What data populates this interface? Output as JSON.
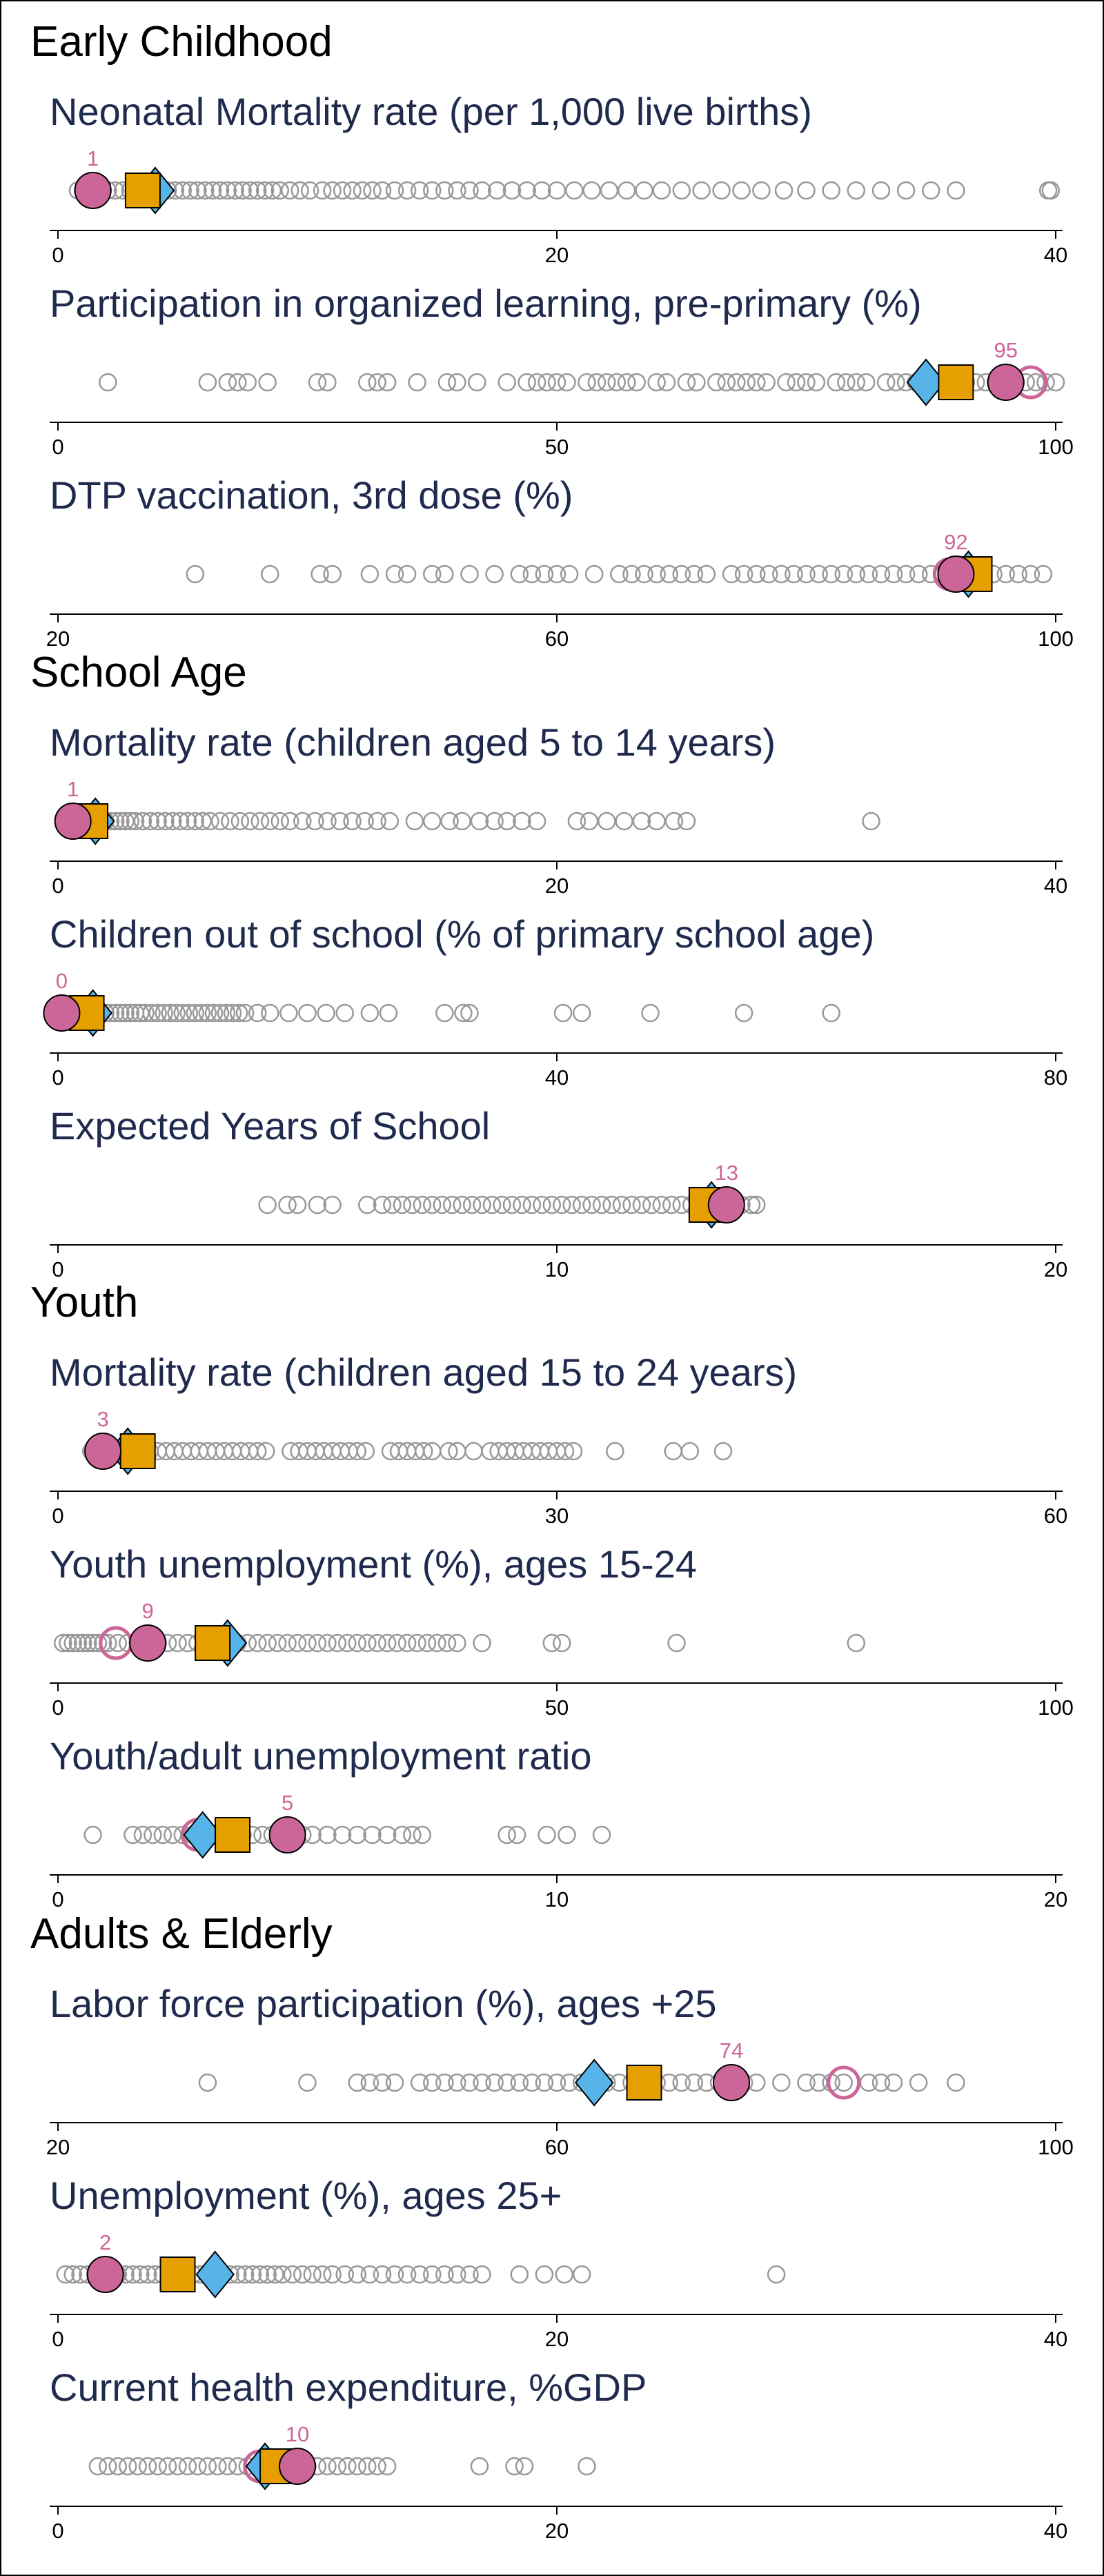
{
  "colors": {
    "background": "#ffffff",
    "country": "#cc6699",
    "square": "#e69f00",
    "diamond": "#56b4e9",
    "others": "#999999",
    "title": "#1f2a4d"
  },
  "sections": [
    {
      "title": "Early Childhood",
      "panels": [
        {
          "title": "Neonatal Mortality rate (per 1,000 live births)",
          "axis": {
            "min": 0,
            "max": 40,
            "ticks": [
              0,
              20,
              40
            ]
          },
          "country": 1.4,
          "country_label": "1",
          "square": 3.4,
          "diamond": 3.9,
          "ring": null,
          "points": [
            0.8,
            1.0,
            1.2,
            1.5,
            1.8,
            2.0,
            2.3,
            2.6,
            2.9,
            3.2,
            3.5,
            3.8,
            4.1,
            4.4,
            4.7,
            5.0,
            5.3,
            5.6,
            5.9,
            6.2,
            6.5,
            6.8,
            7.1,
            7.4,
            7.7,
            8.0,
            8.3,
            8.6,
            8.9,
            9.3,
            9.7,
            10.1,
            10.6,
            11.0,
            11.4,
            11.8,
            12.2,
            12.6,
            13.0,
            13.5,
            14.0,
            14.5,
            15.0,
            15.5,
            16.0,
            16.5,
            17.0,
            17.6,
            18.2,
            18.8,
            19.4,
            20.0,
            20.7,
            21.4,
            22.1,
            22.8,
            23.5,
            24.2,
            25.0,
            25.8,
            26.6,
            27.4,
            28.2,
            29.1,
            30.0,
            31.0,
            32.0,
            33.0,
            34.0,
            35.0,
            36.0,
            39.7,
            39.8
          ]
        },
        {
          "title": "Participation in organized learning,  pre-primary (%)",
          "axis": {
            "min": 0,
            "max": 100,
            "ticks": [
              0,
              50,
              100
            ]
          },
          "country": 95,
          "country_label": "95",
          "square": 90,
          "diamond": 87,
          "ring": 97.5,
          "points": [
            5,
            15,
            17,
            18,
            19,
            21,
            26,
            27,
            31,
            32,
            33,
            36,
            39,
            40,
            42,
            45,
            47,
            48,
            49,
            50,
            51,
            53,
            54,
            55,
            56,
            57,
            58,
            60,
            61,
            63,
            64,
            66,
            67,
            68,
            69,
            70,
            71,
            73,
            74,
            75,
            76,
            78,
            79,
            80,
            81,
            83,
            84,
            85,
            86,
            87,
            88,
            89,
            90,
            91,
            92,
            93,
            94,
            95,
            96,
            97,
            98,
            99,
            100
          ]
        },
        {
          "title": "DTP vaccination, 3rd dose (%)",
          "axis": {
            "min": 20,
            "max": 100,
            "ticks": [
              20,
              60,
              100
            ]
          },
          "country": 92,
          "country_label": "92",
          "square": 93.5,
          "diamond": 93,
          "ring": 91.5,
          "points": [
            31,
            37,
            41,
            42,
            45,
            47,
            48,
            50,
            51,
            53,
            55,
            57,
            58,
            59,
            60,
            61,
            63,
            65,
            66,
            67,
            68,
            69,
            70,
            71,
            72,
            74,
            75,
            76,
            77,
            78,
            79,
            80,
            81,
            82,
            83,
            84,
            85,
            86,
            87,
            88,
            89,
            90,
            91,
            92,
            93,
            94,
            95,
            96,
            97,
            98,
            99
          ]
        }
      ]
    },
    {
      "title": "School Age",
      "panels": [
        {
          "title": "Mortality rate (children aged 5 to 14 years)",
          "axis": {
            "min": 0,
            "max": 40,
            "ticks": [
              0,
              20,
              40
            ]
          },
          "country": 0.6,
          "country_label": "1",
          "square": 1.3,
          "diamond": 1.5,
          "ring": null,
          "points": [
            0.3,
            0.5,
            0.7,
            0.9,
            1.1,
            1.3,
            1.5,
            1.7,
            1.9,
            2.1,
            2.3,
            2.5,
            2.7,
            2.9,
            3.1,
            3.4,
            3.7,
            4.0,
            4.3,
            4.6,
            4.9,
            5.2,
            5.5,
            5.8,
            6.1,
            6.5,
            6.9,
            7.3,
            7.7,
            8.1,
            8.5,
            8.9,
            9.3,
            9.8,
            10.3,
            10.8,
            11.3,
            11.8,
            12.3,
            12.8,
            13.3,
            14.3,
            15.0,
            15.7,
            16.2,
            16.9,
            17.5,
            18.0,
            18.6,
            19.2,
            20.8,
            21.3,
            22.0,
            22.7,
            23.4,
            24.0,
            24.7,
            25.2,
            32.6
          ]
        },
        {
          "title": "Children out of school (% of primary school age)",
          "axis": {
            "min": 0,
            "max": 80,
            "ticks": [
              0,
              40,
              80
            ]
          },
          "country": 0.3,
          "country_label": "0",
          "square": 2.3,
          "diamond": 2.8,
          "ring": null,
          "points": [
            0.2,
            0.5,
            0.8,
            1.1,
            1.4,
            1.7,
            2.0,
            2.3,
            2.6,
            3.0,
            3.4,
            3.8,
            4.2,
            4.6,
            5.0,
            5.4,
            5.8,
            6.2,
            6.6,
            7.0,
            7.5,
            8.0,
            8.5,
            9.0,
            9.5,
            10.0,
            10.5,
            11.0,
            11.5,
            12.0,
            12.5,
            13.0,
            13.5,
            14.0,
            14.5,
            15.0,
            16.0,
            17.0,
            18.5,
            20.0,
            21.5,
            23.0,
            25.0,
            26.5,
            31.0,
            32.5,
            33.0,
            40.5,
            42.0,
            47.5,
            55.0,
            62.0
          ]
        },
        {
          "title": "Expected Years of School",
          "axis": {
            "min": 0,
            "max": 20,
            "ticks": [
              0,
              10,
              20
            ]
          },
          "country": 13.4,
          "country_label": "13",
          "square": 13.0,
          "diamond": 13.1,
          "ring": null,
          "points": [
            4.2,
            4.6,
            4.8,
            5.2,
            5.5,
            6.2,
            6.5,
            6.7,
            6.9,
            7.1,
            7.3,
            7.5,
            7.7,
            7.9,
            8.1,
            8.3,
            8.5,
            8.7,
            8.9,
            9.1,
            9.3,
            9.5,
            9.7,
            9.9,
            10.1,
            10.3,
            10.5,
            10.7,
            10.9,
            11.1,
            11.3,
            11.5,
            11.7,
            11.9,
            12.1,
            12.3,
            12.5,
            12.7,
            12.9,
            13.1,
            13.3,
            13.5,
            13.7,
            13.9,
            14.0
          ]
        }
      ]
    },
    {
      "title": "Youth",
      "panels": [
        {
          "title": "Mortality rate (children aged 15 to 24 years)",
          "axis": {
            "min": 0,
            "max": 60,
            "ticks": [
              0,
              30,
              60
            ]
          },
          "country": 2.7,
          "country_label": "3",
          "square": 4.8,
          "diamond": 4.2,
          "ring": null,
          "points": [
            2.0,
            2.5,
            3.0,
            3.5,
            4.0,
            4.5,
            5.0,
            5.5,
            6.0,
            6.5,
            7.0,
            7.5,
            8.0,
            8.5,
            9.0,
            9.5,
            10.0,
            10.5,
            11.0,
            11.5,
            12.0,
            12.5,
            14.0,
            14.5,
            15.0,
            15.5,
            16.0,
            16.5,
            17.0,
            17.5,
            18.0,
            18.5,
            20.0,
            20.5,
            21.0,
            21.5,
            22.0,
            22.5,
            23.5,
            24.0,
            25.0,
            26.0,
            26.5,
            27.0,
            27.5,
            28.0,
            28.5,
            29.0,
            29.5,
            30.0,
            30.5,
            31.0,
            33.5,
            37.0,
            38.0,
            40.0
          ]
        },
        {
          "title": "Youth unemployment (%), ages 15-24",
          "axis": {
            "min": 0,
            "max": 100,
            "ticks": [
              0,
              50,
              100
            ]
          },
          "country": 9,
          "country_label": "9",
          "square": 15.5,
          "diamond": 17,
          "ring": 5.8,
          "points": [
            0.5,
            1.0,
            1.5,
            2.0,
            2.5,
            3.0,
            3.5,
            4.0,
            4.5,
            5.0,
            6.0,
            7.0,
            8.0,
            9.0,
            10.0,
            11.0,
            12.0,
            13.0,
            14.0,
            15.0,
            16.0,
            17.0,
            18.0,
            19.0,
            20.0,
            21.0,
            22.0,
            23.0,
            24.0,
            25.0,
            26.0,
            27.0,
            28.0,
            29.0,
            30.0,
            31.0,
            32.0,
            33.0,
            34.0,
            35.0,
            36.0,
            37.0,
            38.0,
            39.0,
            40.0,
            42.5,
            49.5,
            50.5,
            62.0,
            80.0
          ]
        },
        {
          "title": "Youth/adult unemployment ratio",
          "axis": {
            "min": 0,
            "max": 20,
            "ticks": [
              0,
              10,
              20
            ]
          },
          "country": 4.6,
          "country_label": "5",
          "square": 3.5,
          "diamond": 2.9,
          "ring": 2.8,
          "points": [
            0.7,
            1.5,
            1.7,
            1.9,
            2.1,
            2.3,
            2.5,
            2.7,
            2.9,
            3.1,
            3.3,
            3.5,
            3.7,
            3.9,
            4.1,
            4.3,
            4.5,
            4.7,
            4.9,
            5.1,
            5.4,
            5.7,
            6.0,
            6.3,
            6.6,
            6.9,
            7.1,
            7.3,
            9.0,
            9.2,
            9.8,
            10.2,
            10.9
          ]
        }
      ]
    },
    {
      "title": "Adults & Elderly",
      "panels": [
        {
          "title": "Labor force participation (%), ages +25",
          "axis": {
            "min": 20,
            "max": 100,
            "ticks": [
              20,
              60,
              100
            ]
          },
          "country": 74,
          "country_label": "74",
          "square": 67,
          "diamond": 63,
          "ring": 83,
          "points": [
            32,
            40,
            44,
            45,
            46,
            47,
            49,
            50,
            51,
            52,
            53,
            54,
            55,
            56,
            57,
            58,
            59,
            60,
            61,
            62,
            63,
            64,
            65,
            66,
            67,
            68,
            69,
            70,
            71,
            72,
            73,
            74,
            75,
            76,
            78,
            80,
            81,
            82,
            83,
            85,
            86,
            87,
            89,
            92
          ]
        },
        {
          "title": "Unemployment (%), ages 25+",
          "axis": {
            "min": 0,
            "max": 40,
            "ticks": [
              0,
              20,
              40
            ]
          },
          "country": 1.9,
          "country_label": "2",
          "square": 4.8,
          "diamond": 6.3,
          "ring": null,
          "points": [
            0.3,
            0.6,
            0.9,
            1.2,
            1.5,
            1.8,
            2.1,
            2.4,
            2.7,
            3.0,
            3.3,
            3.6,
            3.9,
            4.2,
            4.5,
            4.8,
            5.1,
            5.4,
            5.7,
            6.0,
            6.3,
            6.6,
            6.9,
            7.2,
            7.5,
            7.8,
            8.1,
            8.4,
            8.7,
            9.0,
            9.4,
            9.8,
            10.2,
            10.6,
            11.0,
            11.5,
            12.0,
            12.5,
            13.0,
            13.5,
            14.0,
            14.5,
            15.0,
            15.5,
            16.0,
            16.5,
            17.0,
            18.5,
            19.5,
            20.3,
            21.0,
            28.8
          ]
        },
        {
          "title": "Current health expenditure, %GDP",
          "axis": {
            "min": 0,
            "max": 40,
            "ticks": [
              0,
              20,
              40
            ]
          },
          "country": 9.6,
          "country_label": "10",
          "square": 8.8,
          "diamond": 8.3,
          "ring": 8.1,
          "points": [
            1.6,
            2.0,
            2.4,
            2.8,
            3.2,
            3.6,
            4.0,
            4.4,
            4.8,
            5.2,
            5.6,
            6.0,
            6.4,
            6.8,
            7.2,
            7.6,
            8.0,
            8.4,
            8.8,
            9.2,
            9.6,
            10.0,
            10.4,
            10.8,
            11.2,
            11.6,
            12.0,
            12.4,
            12.8,
            13.2,
            16.9,
            18.3,
            18.7,
            21.2
          ]
        }
      ]
    }
  ]
}
